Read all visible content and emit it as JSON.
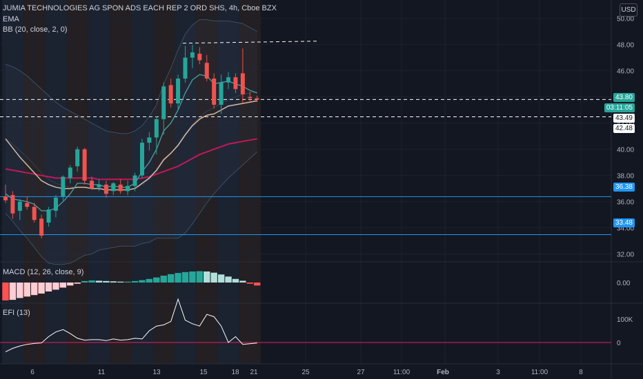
{
  "header": {
    "title": "JUMIA TECHNOLOGIES AG SPON ADS EACH REP 2 ORD SHS, 4h, Cboe BZX",
    "ema_label": "EMA",
    "bb_label": "BB (20, close, 2, 0)",
    "currency": "USD"
  },
  "macd_label": "MACD (12, 26, close, 9)",
  "efi_label": "EFI (13)",
  "price_tags": {
    "last": "43.80",
    "countdown": "03:11:05",
    "t1": "43.49",
    "t2": "42.48",
    "s1": "36.38",
    "s2": "33.48"
  },
  "colors": {
    "background": "#131722",
    "up": "#26a69a",
    "down": "#ef5350",
    "ema_fast": "#4ba0a8",
    "ema_mid": "#d9b9a0",
    "ema_slow": "#c2185b",
    "hline": "#2196f3",
    "efi_line": "#ffffff",
    "efi_zero": "#e91e63"
  },
  "chart_data": {
    "type": "candlestick",
    "title": "JUMIA TECHNOLOGIES AG SPON ADS EACH REP 2 ORD SHS, 4h, Cboe BZX",
    "y_ticks": [
      "32.00",
      "34.00",
      "36.00",
      "38.00",
      "40.00",
      "42.00",
      "44.00",
      "46.00",
      "48.00",
      "50.00"
    ],
    "ylim": [
      31.4,
      51.4
    ],
    "x_ticks": [
      "6",
      "11",
      "13",
      "15",
      "18",
      "21",
      "25",
      "27",
      "11:00",
      "Feb",
      "3",
      "11:00",
      "8"
    ],
    "candles": [
      {
        "o": 36.4,
        "h": 37.3,
        "l": 35.9,
        "c": 36.1
      },
      {
        "o": 36.5,
        "h": 36.8,
        "l": 34.7,
        "c": 35.1
      },
      {
        "o": 35.3,
        "h": 36.2,
        "l": 34.6,
        "c": 36.0
      },
      {
        "o": 35.9,
        "h": 36.4,
        "l": 35.4,
        "c": 35.6
      },
      {
        "o": 35.6,
        "h": 35.9,
        "l": 34.4,
        "c": 34.6
      },
      {
        "o": 34.7,
        "h": 35.0,
        "l": 33.2,
        "c": 33.4
      },
      {
        "o": 34.4,
        "h": 35.6,
        "l": 34.1,
        "c": 35.4
      },
      {
        "o": 35.3,
        "h": 36.5,
        "l": 34.8,
        "c": 36.3
      },
      {
        "o": 36.4,
        "h": 38.0,
        "l": 36.1,
        "c": 37.9
      },
      {
        "o": 37.8,
        "h": 38.8,
        "l": 37.4,
        "c": 38.6
      },
      {
        "o": 38.7,
        "h": 40.2,
        "l": 38.3,
        "c": 40.0
      },
      {
        "o": 40.0,
        "h": 40.1,
        "l": 37.3,
        "c": 37.6
      },
      {
        "o": 37.6,
        "h": 37.9,
        "l": 36.9,
        "c": 37.0
      },
      {
        "o": 37.1,
        "h": 37.7,
        "l": 36.8,
        "c": 37.3
      },
      {
        "o": 37.3,
        "h": 37.6,
        "l": 36.3,
        "c": 36.6
      },
      {
        "o": 36.8,
        "h": 37.5,
        "l": 36.5,
        "c": 37.4
      },
      {
        "o": 37.3,
        "h": 37.7,
        "l": 36.6,
        "c": 36.8
      },
      {
        "o": 36.8,
        "h": 37.6,
        "l": 36.5,
        "c": 37.2
      },
      {
        "o": 37.2,
        "h": 38.2,
        "l": 36.8,
        "c": 38.0
      },
      {
        "o": 38.0,
        "h": 40.8,
        "l": 37.8,
        "c": 40.5
      },
      {
        "o": 40.5,
        "h": 41.3,
        "l": 39.9,
        "c": 40.9
      },
      {
        "o": 40.9,
        "h": 42.5,
        "l": 39.6,
        "c": 42.3
      },
      {
        "o": 42.3,
        "h": 45.1,
        "l": 41.1,
        "c": 44.8
      },
      {
        "o": 44.9,
        "h": 45.4,
        "l": 43.2,
        "c": 43.5
      },
      {
        "o": 43.5,
        "h": 45.7,
        "l": 43.0,
        "c": 45.4
      },
      {
        "o": 45.4,
        "h": 47.9,
        "l": 45.1,
        "c": 47.0
      },
      {
        "o": 47.0,
        "h": 48.0,
        "l": 46.2,
        "c": 47.4
      },
      {
        "o": 47.3,
        "h": 47.8,
        "l": 46.5,
        "c": 46.8
      },
      {
        "o": 46.6,
        "h": 47.2,
        "l": 45.2,
        "c": 45.4
      },
      {
        "o": 45.4,
        "h": 45.8,
        "l": 43.1,
        "c": 43.4
      },
      {
        "o": 43.4,
        "h": 45.7,
        "l": 42.7,
        "c": 45.1
      },
      {
        "o": 45.1,
        "h": 45.9,
        "l": 44.6,
        "c": 45.5
      },
      {
        "o": 45.5,
        "h": 45.8,
        "l": 44.3,
        "c": 44.6
      },
      {
        "o": 45.8,
        "h": 47.7,
        "l": 43.5,
        "c": 44.2
      },
      {
        "o": 44.0,
        "h": 44.4,
        "l": 43.6,
        "c": 43.9
      },
      {
        "o": 43.9,
        "h": 44.1,
        "l": 43.6,
        "c": 43.8
      }
    ],
    "ema_fast": [
      36.6,
      36.2,
      36.1,
      36.0,
      35.8,
      35.3,
      35.3,
      35.5,
      36.0,
      36.6,
      37.4,
      37.4,
      37.3,
      37.3,
      37.1,
      37.2,
      37.1,
      37.1,
      37.4,
      38.3,
      39.0,
      40.0,
      41.4,
      42.0,
      43.0,
      44.3,
      45.3,
      45.7,
      45.6,
      45.0,
      45.1,
      45.2,
      45.0,
      44.8,
      44.5,
      44.3
    ],
    "ema_mid": [
      40.8,
      40.1,
      39.4,
      38.8,
      38.2,
      37.6,
      37.3,
      37.1,
      37.0,
      37.0,
      37.1,
      37.1,
      37.0,
      37.0,
      36.9,
      36.9,
      36.9,
      36.9,
      37.0,
      37.4,
      37.8,
      38.4,
      39.2,
      39.7,
      40.3,
      41.1,
      41.8,
      42.3,
      42.6,
      42.7,
      43.0,
      43.3,
      43.4,
      43.5,
      43.6,
      43.7
    ],
    "ema_slow": [
      38.5,
      38.4,
      38.3,
      38.2,
      38.1,
      38.0,
      37.9,
      37.8,
      37.8,
      37.8,
      37.8,
      37.8,
      37.8,
      37.7,
      37.7,
      37.7,
      37.7,
      37.7,
      37.7,
      37.8,
      37.9,
      38.1,
      38.3,
      38.5,
      38.7,
      39.0,
      39.3,
      39.6,
      39.8,
      40.0,
      40.2,
      40.4,
      40.5,
      40.6,
      40.7,
      40.8
    ],
    "bb_upper": [
      46.5,
      46.3,
      46.0,
      45.6,
      45.1,
      44.6,
      44.1,
      43.6,
      43.2,
      42.9,
      42.6,
      42.3,
      42.0,
      41.7,
      41.4,
      41.3,
      41.2,
      41.2,
      41.4,
      41.8,
      42.5,
      43.4,
      45.0,
      46.2,
      47.6,
      48.8,
      49.5,
      49.9,
      49.9,
      49.8,
      49.8,
      49.8,
      49.7,
      49.6,
      49.3,
      49.0
    ],
    "bb_basis": [
      40.8,
      40.4,
      39.9,
      39.4,
      38.8,
      38.2,
      37.7,
      37.4,
      37.2,
      37.1,
      37.1,
      37.1,
      37.0,
      37.0,
      36.9,
      36.9,
      36.9,
      36.9,
      37.0,
      37.3,
      37.7,
      38.3,
      39.1,
      39.7,
      40.4,
      41.2,
      41.9,
      42.5,
      42.9,
      43.2,
      43.5,
      43.8,
      44.0,
      44.2,
      44.3,
      44.4
    ],
    "bb_lower": [
      35.1,
      34.5,
      33.8,
      33.2,
      32.5,
      31.8,
      31.3,
      31.2,
      31.2,
      31.3,
      31.6,
      31.9,
      32.0,
      32.3,
      32.4,
      32.5,
      32.6,
      32.6,
      32.6,
      32.8,
      32.9,
      33.2,
      33.2,
      33.2,
      33.2,
      33.6,
      34.3,
      35.1,
      35.9,
      36.6,
      37.2,
      37.8,
      38.3,
      38.8,
      39.3,
      39.8
    ],
    "hlines": {
      "resistance_top": 48.1,
      "dashed_upper": 43.8,
      "dashed_lower": 42.48,
      "support_1": 36.38,
      "support_2": 33.48
    },
    "macd": {
      "ylabel_tick": "0.00",
      "hist": [
        -0.6,
        -0.58,
        -0.52,
        -0.47,
        -0.42,
        -0.37,
        -0.3,
        -0.24,
        -0.17,
        -0.1,
        -0.04,
        0.05,
        0.07,
        0.06,
        0.05,
        0.04,
        0.03,
        0.03,
        0.05,
        0.08,
        0.12,
        0.17,
        0.23,
        0.28,
        0.32,
        0.35,
        0.37,
        0.38,
        0.37,
        0.33,
        0.27,
        0.2,
        0.12,
        0.06,
        -0.04,
        -0.1
      ]
    },
    "efi": {
      "y_ticks": [
        "100K",
        "0"
      ],
      "values": [
        -40,
        -25,
        -15,
        -8,
        -4,
        -2,
        25,
        45,
        55,
        38,
        18,
        10,
        12,
        12,
        8,
        15,
        10,
        12,
        18,
        15,
        50,
        70,
        75,
        90,
        185,
        95,
        80,
        70,
        120,
        110,
        70,
        0,
        25,
        -8,
        -5,
        -2
      ]
    }
  }
}
